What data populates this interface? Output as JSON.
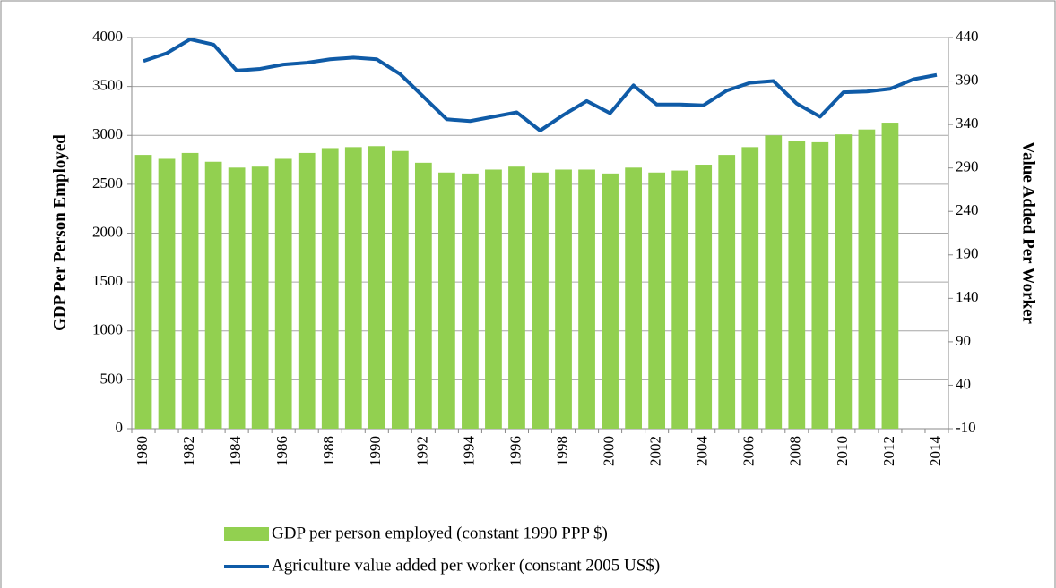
{
  "chart_data": {
    "type": "bar",
    "y_label": "GDP Per Person Employed",
    "y2_label": "Value Added Per Worker",
    "categories": [
      "1980",
      null,
      "1982",
      null,
      "1984",
      null,
      "1986",
      null,
      "1988",
      null,
      "1990",
      null,
      "1992",
      null,
      "1994",
      null,
      "1996",
      null,
      "1998",
      null,
      "2000",
      null,
      "2002",
      null,
      "2004",
      null,
      "2006",
      null,
      "2008",
      null,
      "2010",
      null,
      "2012",
      null,
      "2014"
    ],
    "series": [
      {
        "name": "GDP per person employed (constant 1990 PPP $)",
        "type": "bar",
        "color": "#92d050",
        "values": [
          2800,
          2760,
          2820,
          2730,
          2670,
          2680,
          2760,
          2820,
          2870,
          2880,
          2890,
          2840,
          2720,
          2620,
          2610,
          2650,
          2680,
          2620,
          2650,
          2650,
          2610,
          2670,
          2620,
          2640,
          2700,
          2800,
          2880,
          3000,
          2940,
          2930,
          3010,
          3060,
          3130,
          null,
          null
        ]
      },
      {
        "name": "Agriculture value added per worker (constant 2005 US$)",
        "type": "line",
        "axis": "y2",
        "color": "#0f5ba7",
        "values": [
          413,
          422,
          438,
          432,
          402,
          404,
          409,
          411,
          415,
          417,
          415,
          398,
          372,
          346,
          344,
          349,
          354,
          333,
          351,
          367,
          353,
          385,
          363,
          363,
          362,
          379,
          388,
          390,
          364,
          349,
          377,
          378,
          381,
          392,
          397
        ]
      }
    ],
    "ylim": [
      0,
      4000
    ],
    "yticks": [
      0,
      500,
      1000,
      1500,
      2000,
      2500,
      3000,
      3500,
      4000
    ],
    "y2lim": [
      -10,
      440
    ],
    "y2ticks": [
      -10,
      40,
      90,
      140,
      190,
      240,
      290,
      340,
      390,
      440
    ],
    "grid": true,
    "legend": "bottom"
  }
}
